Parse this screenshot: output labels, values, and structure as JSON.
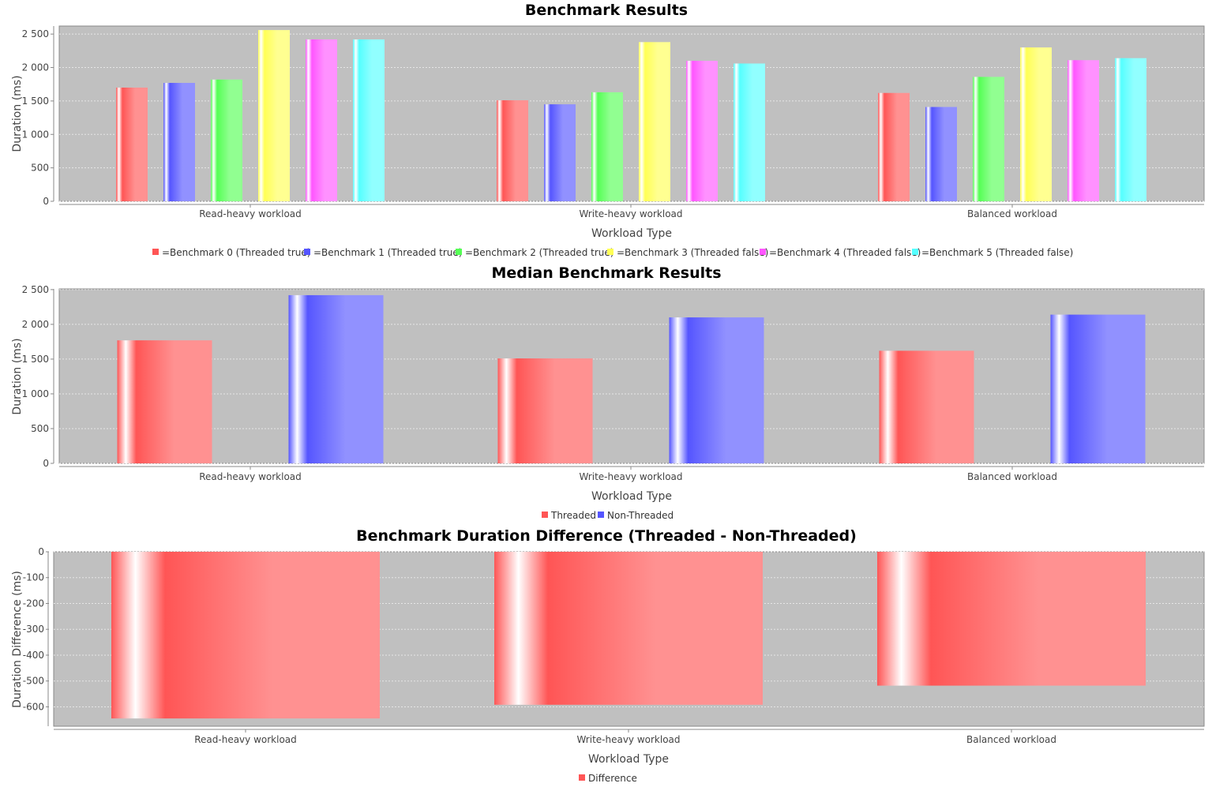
{
  "colors": {
    "plot_background": "#c0c0c0",
    "grid": "#e8e8e8",
    "red": "#ff5555",
    "blue": "#5555ff",
    "green": "#55ff55",
    "yellow": "#ffff55",
    "magenta": "#ff55ff",
    "cyan": "#55ffff"
  },
  "chart_data": [
    {
      "type": "bar",
      "title": "Benchmark Results",
      "xlabel": "Workload Type",
      "ylabel": "Duration (ms)",
      "categories": [
        "Read-heavy workload",
        "Write-heavy workload",
        "Balanced workload"
      ],
      "ylim": [
        0,
        2620
      ],
      "yticks": [
        0,
        500,
        1000,
        1500,
        2000,
        2500
      ],
      "ytick_labels": [
        "0",
        "500",
        "1 000",
        "1 500",
        "2 000",
        "2 500"
      ],
      "grid": true,
      "legend_position": "bottom",
      "series": [
        {
          "name": "=Benchmark 0 (Threaded true)",
          "color": "#ff5555",
          "values": [
            1700,
            1510,
            1620
          ]
        },
        {
          "name": "=Benchmark 1 (Threaded true)",
          "color": "#5555ff",
          "values": [
            1770,
            1450,
            1410
          ]
        },
        {
          "name": "=Benchmark 2 (Threaded true)",
          "color": "#55ff55",
          "values": [
            1820,
            1630,
            1860
          ]
        },
        {
          "name": "=Benchmark 3 (Threaded false)",
          "color": "#ffff55",
          "values": [
            2560,
            2380,
            2300
          ]
        },
        {
          "name": "=Benchmark 4 (Threaded false)",
          "color": "#ff55ff",
          "values": [
            2420,
            2100,
            2110
          ]
        },
        {
          "name": "=Benchmark 5 (Threaded false)",
          "color": "#55ffff",
          "values": [
            2420,
            2060,
            2140
          ]
        }
      ]
    },
    {
      "type": "bar",
      "title": "Median Benchmark Results",
      "xlabel": "Workload Type",
      "ylabel": "Duration (ms)",
      "categories": [
        "Read-heavy workload",
        "Write-heavy workload",
        "Balanced workload"
      ],
      "ylim": [
        0,
        2510
      ],
      "yticks": [
        0,
        500,
        1000,
        1500,
        2000,
        2500
      ],
      "ytick_labels": [
        "0",
        "500",
        "1 000",
        "1 500",
        "2 000",
        "2 500"
      ],
      "grid": true,
      "legend_position": "bottom",
      "series": [
        {
          "name": "Threaded",
          "color": "#ff5555",
          "values": [
            1770,
            1510,
            1620
          ]
        },
        {
          "name": "Non-Threaded",
          "color": "#5555ff",
          "values": [
            2420,
            2100,
            2140
          ]
        }
      ]
    },
    {
      "type": "bar",
      "title": "Benchmark Duration Difference (Threaded - Non-Threaded)",
      "xlabel": "Workload Type",
      "ylabel": "Duration Difference (ms)",
      "categories": [
        "Read-heavy workload",
        "Write-heavy workload",
        "Balanced workload"
      ],
      "ylim": [
        -675,
        0
      ],
      "yticks": [
        0,
        -100,
        -200,
        -300,
        -400,
        -500,
        -600
      ],
      "ytick_labels": [
        "0",
        "-100",
        "-200",
        "-300",
        "-400",
        "-500",
        "-600"
      ],
      "grid": true,
      "legend_position": "bottom",
      "series": [
        {
          "name": "Difference",
          "color": "#ff5555",
          "values": [
            -645,
            -592,
            -518
          ]
        }
      ]
    }
  ]
}
